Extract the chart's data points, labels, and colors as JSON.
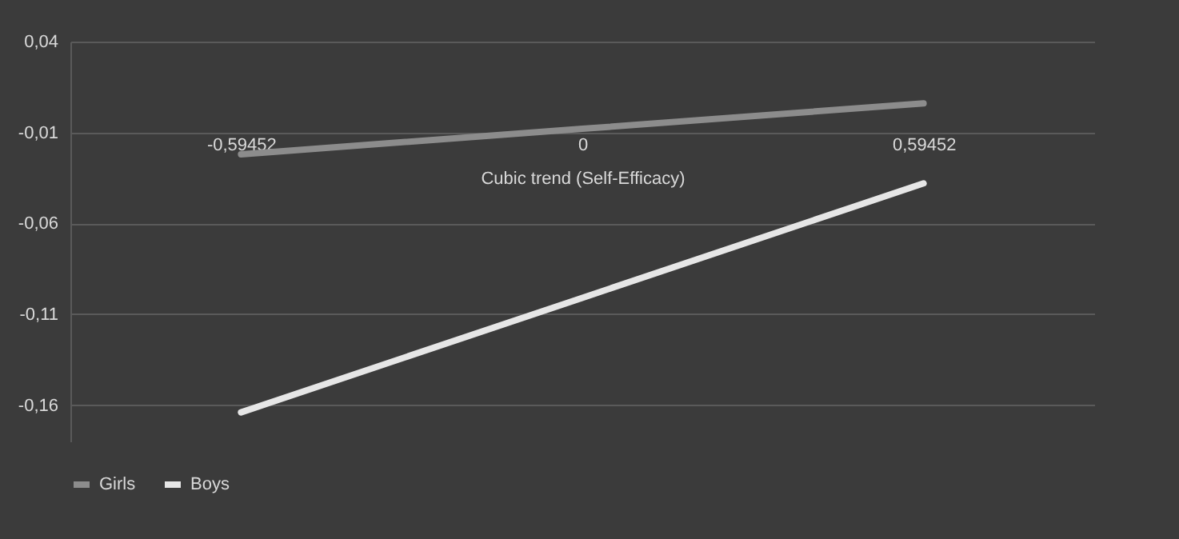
{
  "chart_data": {
    "type": "line",
    "xlabel": "Cubic trend (Self-Efficacy)",
    "categories": [
      "-0,59452",
      "0",
      "0,59452"
    ],
    "series": [
      {
        "name": "Girls",
        "color": "#8c8c8c",
        "values": [
          -0.022,
          -0.008,
          0.006
        ]
      },
      {
        "name": "Boys",
        "color": "#e6e6e6",
        "values": [
          -0.164,
          -0.101,
          -0.038
        ]
      }
    ],
    "ylim": [
      -0.18,
      0.04
    ],
    "yticks": [
      {
        "value": 0.04,
        "label": "0,04"
      },
      {
        "value": -0.01,
        "label": "-0,01"
      },
      {
        "value": -0.06,
        "label": "-0,06"
      },
      {
        "value": -0.11,
        "label": "-0,11"
      },
      {
        "value": -0.16,
        "label": "-0,16"
      }
    ],
    "grid": "y",
    "legend": "bottom",
    "marker": "none",
    "line_style": "solid"
  }
}
